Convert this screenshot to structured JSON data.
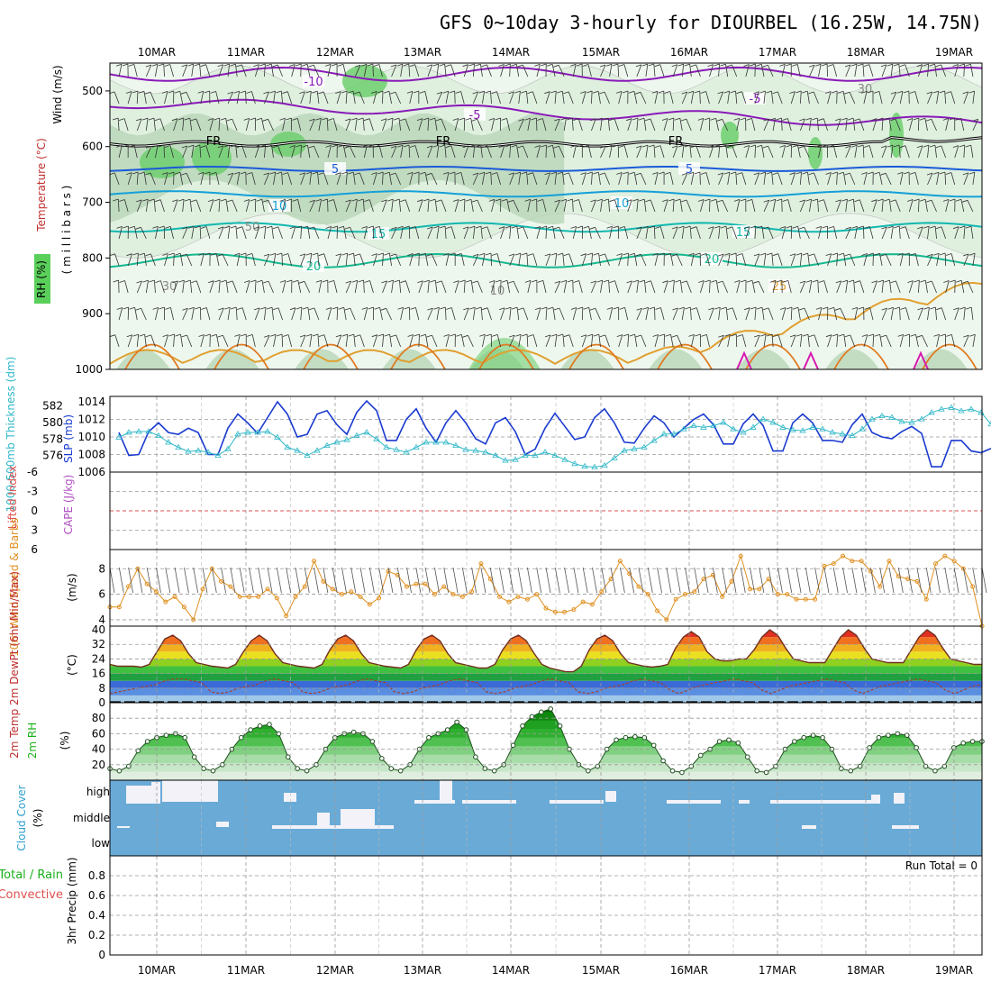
{
  "title": "GFS 0~10day 3-hourly for DIOURBEL (16.25W, 14.75N)",
  "colors": {
    "frame": "#000000",
    "grid": "#a8a8a8",
    "rh_light": "#dff0df",
    "rh_mid": "#b8d6b8",
    "rh_dark": "#6fcf6f",
    "temp_m10": "#8a1ab8",
    "temp_0": "#1a5ad8",
    "temp_10": "#14a0d8",
    "temp_15": "#12b8b0",
    "temp_20": "#16b890",
    "temp_25": "#e0a030",
    "temp_30": "#e07a20",
    "temp_35": "#d81ab0",
    "slp": "#1a3ad0",
    "thick": "#30b8c8",
    "li": "#e05050",
    "wind10": "#e09020",
    "cloud": "#6aaad6",
    "cloud_block": "#f2f2f8",
    "rh2m": "#1ab01a"
  },
  "x_labels": [
    "10MAR",
    "11MAR",
    "12MAR",
    "13MAR",
    "14MAR",
    "15MAR",
    "16MAR",
    "17MAR",
    "18MAR",
    "19MAR"
  ],
  "panels": {
    "upper_air": {
      "label_rh": "RH (%)",
      "label_temp": "Temperature (°C)",
      "label_wind": "Wind (m/s)",
      "label_mb": "( m i l l i b a r s )",
      "y_ticks": [
        "500",
        "600",
        "700",
        "800",
        "900",
        "1000"
      ],
      "fr_label": "FR"
    },
    "slp_thick": {
      "label_thick": "1000-500mb Thickness (dm)",
      "label_slp": "SLP (mb)",
      "left_ticks": [
        "582",
        "580",
        "578",
        "576"
      ],
      "right_ticks": [
        "1014",
        "1012",
        "1010",
        "1008",
        "1006"
      ]
    },
    "li_cape": {
      "label_li": "Lifted Index",
      "label_cape": "CAPE (J/kg)",
      "ticks": [
        "-6",
        "-3",
        "0",
        "3",
        "6"
      ]
    },
    "wind10m": {
      "label": "10m Wind Speed & Barbs",
      "unit": "(m/s)",
      "ticks": [
        "8",
        "6",
        "4"
      ]
    },
    "temp2m": {
      "label": "2m Temp 2m DewPt (6hr Min/Max)",
      "unit": "(°C)",
      "ticks": [
        "40",
        "32",
        "24",
        "16",
        "8",
        "0"
      ]
    },
    "rh2m": {
      "label": "2m RH",
      "unit": "(%)",
      "ticks": [
        "80",
        "60",
        "40",
        "20"
      ]
    },
    "cloud": {
      "label": "Cloud Cover",
      "unit": "(%)",
      "levels": [
        "high",
        "middle",
        "low"
      ]
    },
    "precip": {
      "label": "3hr Precip (mm)",
      "label_total": "Total / Rain",
      "label_conv": "Convective",
      "ticks": [
        "0.8",
        "0.6",
        "0.4",
        "0.2",
        "0"
      ],
      "run_total": "Run Total = 0"
    }
  },
  "chart_data": [
    {
      "type": "heatmap",
      "title": "Upper air",
      "y_range_mb": [
        450,
        1000
      ],
      "temperature_contour_labels": [
        "-10",
        "-5",
        "5",
        "10",
        "15",
        "20",
        "25",
        "30"
      ],
      "rh_contour_labels": [
        "30",
        "50",
        "10",
        "70"
      ],
      "freezing_level_mb": 595
    },
    {
      "type": "line",
      "series": [
        {
          "name": "SLP (mb)",
          "values": [
            1010.5,
            1007.9,
            1008.0,
            1010.6,
            1011.6,
            1010.5,
            1010.3,
            1011.0,
            1010.5,
            1008.0,
            1008.0,
            1011.0,
            1012.6,
            1011.6,
            1010.4,
            1012.2,
            1014.0,
            1012.6,
            1010.0,
            1010.3,
            1012.6,
            1013.0,
            1011.4,
            1010.3,
            1012.8,
            1014.1,
            1013.0,
            1009.6,
            1009.6,
            1012.0,
            1013.2,
            1011.0,
            1009.4,
            1011.6,
            1013.0,
            1011.6,
            1009.8,
            1009.2,
            1011.6,
            1012.2,
            1010.6,
            1008.0,
            1008.6,
            1011.0,
            1012.7,
            1011.2,
            1009.7,
            1010.0,
            1012.2,
            1013.2,
            1011.6,
            1009.4,
            1009.3,
            1011.0,
            1012.4,
            1011.6,
            1010.0,
            1011.0,
            1012.0,
            1012.6,
            1011.4,
            1009.2,
            1009.2,
            1011.5,
            1012.6,
            1011.3,
            1008.4,
            1008.4,
            1011.6,
            1012.6,
            1011.6,
            1009.6,
            1009.6,
            1009.4,
            1011.4,
            1012.6,
            1010.5,
            1010.0,
            1009.8,
            1010.6,
            1011.2,
            1010.4,
            1006.6,
            1006.6,
            1009.6,
            1009.6,
            1008.4,
            1008.2,
            1008.7
          ]
        },
        {
          "name": "1000-500mb Thickness (dm)",
          "values": [
            578.2,
            578.8,
            578.9,
            578.9,
            578.4,
            577.6,
            577.0,
            576.5,
            576.6,
            576.4,
            576.0,
            576.8,
            578.6,
            578.8,
            578.8,
            578.9,
            578.2,
            577.0,
            576.6,
            576.0,
            576.6,
            577.2,
            577.6,
            577.9,
            578.4,
            578.8,
            578.0,
            577.0,
            576.7,
            576.4,
            577.0,
            577.6,
            577.6,
            577.6,
            577.2,
            576.7,
            576.6,
            576.4,
            576.0,
            575.4,
            575.5,
            576.0,
            576.0,
            576.4,
            576.0,
            575.5,
            575.0,
            574.7,
            574.6,
            574.8,
            575.7,
            576.6,
            576.8,
            577.0,
            577.8,
            578.6,
            578.6,
            579.2,
            579.6,
            579.4,
            579.6,
            580.0,
            579.2,
            578.8,
            579.4,
            580.4,
            580.0,
            579.4,
            579.1,
            579.0,
            579.4,
            579.2,
            578.8,
            578.6,
            578.4,
            579.2,
            580.4,
            580.8,
            580.6,
            580.1,
            580.0,
            580.4,
            581.2,
            581.6,
            581.8,
            581.4,
            581.6,
            581.2,
            579.8
          ]
        }
      ]
    },
    {
      "type": "line",
      "series": [
        {
          "name": "Lifted Index",
          "values": []
        }
      ],
      "ylim": [
        6,
        -6
      ]
    },
    {
      "type": "line",
      "series": [
        {
          "name": "10m Wind Speed",
          "values": [
            5.0,
            5.0,
            6.6,
            8.0,
            6.8,
            6.2,
            5.4,
            5.8,
            5.0,
            4.0,
            6.4,
            8.0,
            7.0,
            6.6,
            5.8,
            5.8,
            5.8,
            6.4,
            5.7,
            4.3,
            5.8,
            6.6,
            8.6,
            7.0,
            6.4,
            6.0,
            6.2,
            5.8,
            5.2,
            5.7,
            7.8,
            7.5,
            6.6,
            6.8,
            6.8,
            6.0,
            6.6,
            6.0,
            5.8,
            6.2,
            8.4,
            7.2,
            5.8,
            5.4,
            5.8,
            5.6,
            6.0,
            4.9,
            4.6,
            4.6,
            4.8,
            5.4,
            5.2,
            6.2,
            7.2,
            8.6,
            7.6,
            6.6,
            6.0,
            4.7,
            4.0,
            5.6,
            6.0,
            6.2,
            7.2,
            7.5,
            5.8,
            7.0,
            9.0,
            6.4,
            6.4,
            7.2,
            6.0,
            6.0,
            5.6,
            5.6,
            5.6,
            8.2,
            8.4,
            9.0,
            8.6,
            8.6,
            7.8,
            6.6,
            8.6,
            7.4,
            7.2,
            7.0,
            5.6,
            8.4,
            9.0,
            8.6,
            8.0,
            6.6,
            3.5
          ]
        }
      ],
      "ylim": [
        3.5,
        9.5
      ]
    },
    {
      "type": "area",
      "series": [
        {
          "name": "2m Temp",
          "values": [
            21,
            20,
            20,
            20,
            19.5,
            21,
            28,
            35,
            37,
            34,
            27,
            22,
            21,
            20,
            19.5,
            19,
            21,
            28,
            34,
            37,
            34,
            27,
            22,
            21,
            20,
            19.5,
            19,
            21,
            29,
            35,
            37,
            34,
            27,
            22,
            21,
            20,
            19.5,
            19,
            21,
            29,
            35,
            37,
            34,
            27,
            22,
            21,
            20,
            19,
            19,
            21,
            29,
            35,
            37,
            34,
            27,
            21,
            19,
            18,
            17,
            17,
            20,
            29,
            35,
            37,
            34,
            27,
            22,
            21,
            20,
            19.5,
            20,
            21,
            30,
            36,
            39,
            36,
            28,
            24,
            23,
            23,
            24,
            24,
            29,
            36,
            40,
            37,
            30,
            24,
            23,
            22,
            22,
            22,
            29,
            36,
            40,
            37,
            30,
            24,
            23,
            22,
            22,
            22,
            29,
            36,
            40,
            37,
            30,
            24,
            23,
            22,
            21,
            21
          ]
        },
        {
          "name": "2m DewPt",
          "values": [
            5,
            6,
            7,
            8,
            9,
            10,
            12,
            13,
            13,
            12,
            11,
            6,
            5,
            6,
            8,
            9,
            10,
            12,
            13,
            12,
            11,
            6,
            5,
            6,
            8,
            9,
            10,
            12,
            13,
            12,
            11,
            6,
            5,
            6,
            8,
            9,
            10,
            12,
            13,
            12,
            11,
            6,
            5,
            6,
            8,
            9,
            10,
            12,
            13,
            12,
            11,
            6,
            5,
            6,
            8,
            9,
            10,
            12,
            13,
            12,
            11,
            7,
            5,
            7,
            9,
            10,
            11,
            12,
            13,
            12,
            11,
            7,
            5,
            7,
            9,
            10,
            11,
            12,
            13,
            12,
            11,
            7,
            5,
            7,
            9,
            10,
            11,
            12,
            13,
            12,
            11,
            7,
            5,
            7,
            9,
            10
          ]
        }
      ],
      "ylim": [
        0,
        42
      ]
    },
    {
      "type": "area",
      "series": [
        {
          "name": "2m RH",
          "values": [
            15,
            12,
            18,
            38,
            50,
            55,
            58,
            60,
            55,
            30,
            15,
            12,
            20,
            40,
            55,
            65,
            70,
            72,
            60,
            30,
            15,
            12,
            20,
            40,
            55,
            60,
            62,
            60,
            50,
            28,
            15,
            12,
            20,
            40,
            55,
            60,
            65,
            75,
            65,
            30,
            15,
            12,
            20,
            45,
            70,
            82,
            88,
            92,
            70,
            40,
            20,
            12,
            18,
            40,
            52,
            55,
            56,
            55,
            45,
            25,
            12,
            10,
            18,
            32,
            40,
            50,
            52,
            48,
            30,
            12,
            10,
            18,
            40,
            50,
            55,
            58,
            55,
            40,
            15,
            12,
            18,
            42,
            55,
            58,
            60,
            58,
            42,
            18,
            12,
            18,
            42,
            48,
            50,
            50
          ]
        }
      ],
      "ylim": [
        0,
        100
      ]
    },
    {
      "type": "table",
      "title": "Cloud Cover",
      "levels": [
        "high",
        "middle",
        "low"
      ]
    },
    {
      "type": "bar",
      "title": "3hr Precip (mm)",
      "values": [],
      "ylim": [
        0,
        1
      ]
    }
  ]
}
